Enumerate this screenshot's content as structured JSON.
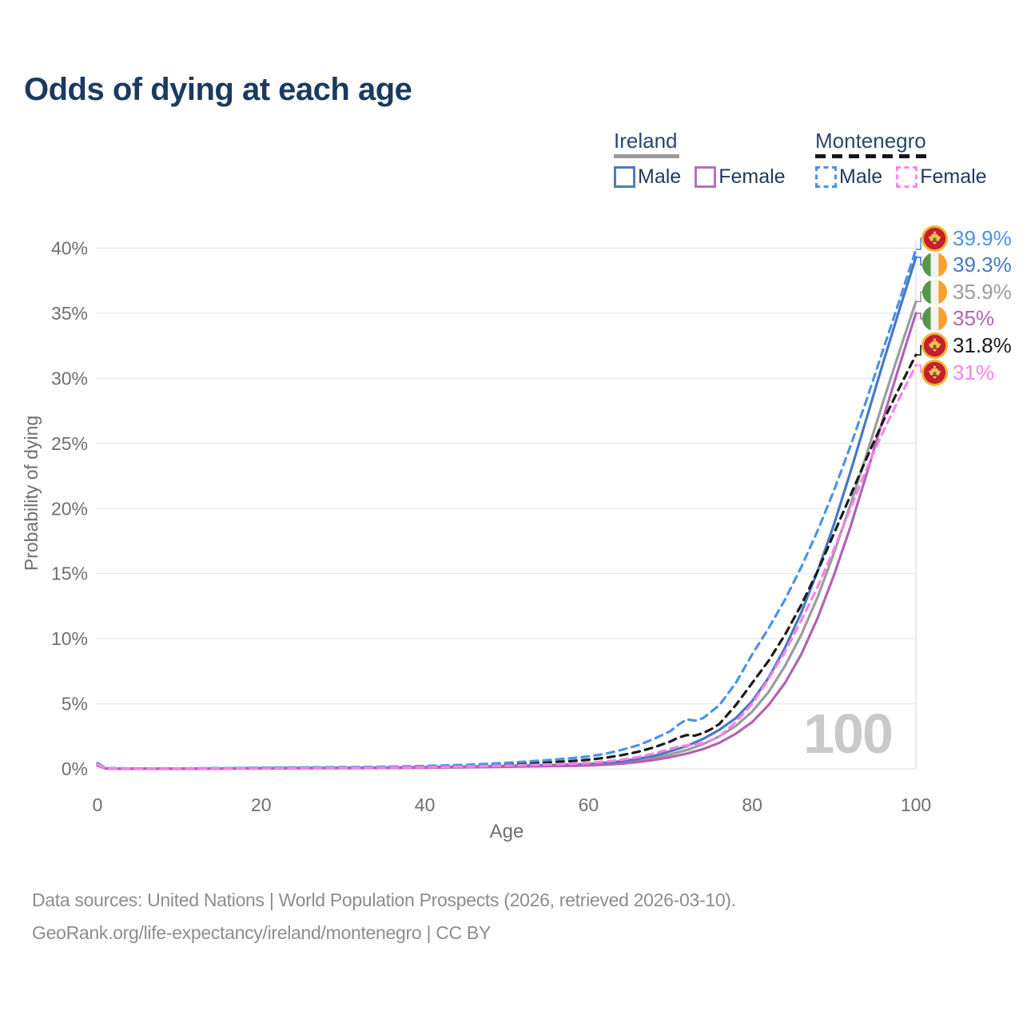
{
  "title": "Odds of dying at each age",
  "legend": {
    "groups": [
      {
        "name": "Ireland",
        "underline": "solid",
        "items": [
          {
            "label": "Male"
          },
          {
            "label": "Female"
          }
        ]
      },
      {
        "name": "Montenegro",
        "underline": "dashed",
        "items": [
          {
            "label": "Male"
          },
          {
            "label": "Female"
          }
        ]
      }
    ]
  },
  "chart_data": {
    "type": "line",
    "title": "Odds of dying at each age",
    "xlabel": "Age",
    "ylabel": "Probability of dying",
    "xlim": [
      0,
      100
    ],
    "ylim": [
      0,
      40
    ],
    "grid": "horizontal",
    "age_indicator": "100",
    "x_ticks": [
      {
        "v": 0,
        "label": "0"
      },
      {
        "v": 20,
        "label": "20"
      },
      {
        "v": 40,
        "label": "40"
      },
      {
        "v": 60,
        "label": "60"
      },
      {
        "v": 80,
        "label": "80"
      },
      {
        "v": 100,
        "label": "100"
      }
    ],
    "y_ticks": [
      {
        "v": 0,
        "label": "0%"
      },
      {
        "v": 5,
        "label": "5%"
      },
      {
        "v": 10,
        "label": "10%"
      },
      {
        "v": 15,
        "label": "15%"
      },
      {
        "v": 20,
        "label": "20%"
      },
      {
        "v": 25,
        "label": "25%"
      },
      {
        "v": 30,
        "label": "30%"
      },
      {
        "v": 35,
        "label": "35%"
      },
      {
        "v": 40,
        "label": "40%"
      }
    ],
    "series": [
      {
        "id": "mne-male",
        "name": "Montenegro Male",
        "country": "montenegro",
        "sex": "male",
        "color": "#4b93ea",
        "dash": true,
        "end_label": "39.9%",
        "points": [
          [
            0,
            0.45
          ],
          [
            1,
            0.06
          ],
          [
            2,
            0.04
          ],
          [
            5,
            0.03
          ],
          [
            10,
            0.03
          ],
          [
            15,
            0.05
          ],
          [
            20,
            0.09
          ],
          [
            25,
            0.11
          ],
          [
            30,
            0.13
          ],
          [
            35,
            0.16
          ],
          [
            40,
            0.22
          ],
          [
            45,
            0.31
          ],
          [
            50,
            0.46
          ],
          [
            55,
            0.67
          ],
          [
            58,
            0.82
          ],
          [
            60,
            0.95
          ],
          [
            62,
            1.15
          ],
          [
            64,
            1.45
          ],
          [
            66,
            1.8
          ],
          [
            68,
            2.3
          ],
          [
            70,
            2.9
          ],
          [
            71,
            3.4
          ],
          [
            72,
            3.8
          ],
          [
            73,
            3.7
          ],
          [
            74,
            3.9
          ],
          [
            75,
            4.4
          ],
          [
            76,
            4.9
          ],
          [
            78,
            6.6
          ],
          [
            80,
            8.8
          ],
          [
            82,
            10.8
          ],
          [
            84,
            13.0
          ],
          [
            86,
            15.5
          ],
          [
            88,
            18.3
          ],
          [
            90,
            21.4
          ],
          [
            92,
            24.8
          ],
          [
            94,
            28.4
          ],
          [
            96,
            32.2
          ],
          [
            98,
            36.0
          ],
          [
            100,
            39.9
          ]
        ]
      },
      {
        "id": "irl-male",
        "name": "Ireland Male",
        "country": "ireland",
        "sex": "male",
        "color": "#4679c4",
        "dash": false,
        "end_label": "39.3%",
        "points": [
          [
            0,
            0.3
          ],
          [
            1,
            0.04
          ],
          [
            2,
            0.02
          ],
          [
            5,
            0.012
          ],
          [
            10,
            0.012
          ],
          [
            15,
            0.03
          ],
          [
            20,
            0.06
          ],
          [
            25,
            0.07
          ],
          [
            30,
            0.08
          ],
          [
            35,
            0.1
          ],
          [
            40,
            0.13
          ],
          [
            45,
            0.17
          ],
          [
            50,
            0.23
          ],
          [
            55,
            0.29
          ],
          [
            58,
            0.33
          ],
          [
            60,
            0.37
          ],
          [
            62,
            0.46
          ],
          [
            64,
            0.58
          ],
          [
            66,
            0.76
          ],
          [
            68,
            1.0
          ],
          [
            70,
            1.35
          ],
          [
            72,
            1.75
          ],
          [
            74,
            2.3
          ],
          [
            76,
            3.0
          ],
          [
            78,
            3.9
          ],
          [
            80,
            5.2
          ],
          [
            82,
            7.0
          ],
          [
            84,
            9.3
          ],
          [
            86,
            12.0
          ],
          [
            88,
            15.2
          ],
          [
            90,
            18.8
          ],
          [
            92,
            22.8
          ],
          [
            94,
            27.0
          ],
          [
            96,
            31.2
          ],
          [
            98,
            35.3
          ],
          [
            100,
            39.3
          ]
        ]
      },
      {
        "id": "irl-both",
        "name": "Ireland Both sexes",
        "country": "ireland",
        "sex": "both",
        "color": "#9c9c9c",
        "dash": false,
        "end_label": "35.9%",
        "points": [
          [
            0,
            0.28
          ],
          [
            1,
            0.035
          ],
          [
            2,
            0.018
          ],
          [
            5,
            0.01
          ],
          [
            10,
            0.01
          ],
          [
            15,
            0.025
          ],
          [
            20,
            0.05
          ],
          [
            25,
            0.06
          ],
          [
            30,
            0.07
          ],
          [
            35,
            0.085
          ],
          [
            40,
            0.11
          ],
          [
            45,
            0.14
          ],
          [
            50,
            0.19
          ],
          [
            55,
            0.24
          ],
          [
            58,
            0.28
          ],
          [
            60,
            0.31
          ],
          [
            62,
            0.39
          ],
          [
            64,
            0.49
          ],
          [
            66,
            0.63
          ],
          [
            68,
            0.84
          ],
          [
            70,
            1.12
          ],
          [
            72,
            1.45
          ],
          [
            74,
            1.9
          ],
          [
            76,
            2.5
          ],
          [
            78,
            3.3
          ],
          [
            80,
            4.4
          ],
          [
            82,
            5.9
          ],
          [
            84,
            7.9
          ],
          [
            86,
            10.3
          ],
          [
            88,
            13.2
          ],
          [
            90,
            16.6
          ],
          [
            92,
            20.3
          ],
          [
            94,
            24.2
          ],
          [
            96,
            28.2
          ],
          [
            98,
            32.1
          ],
          [
            100,
            35.9
          ]
        ]
      },
      {
        "id": "irl-female",
        "name": "Ireland Female",
        "country": "ireland",
        "sex": "female",
        "color": "#b263b2",
        "dash": false,
        "end_label": "35%",
        "points": [
          [
            0,
            0.25
          ],
          [
            1,
            0.03
          ],
          [
            2,
            0.015
          ],
          [
            5,
            0.009
          ],
          [
            10,
            0.009
          ],
          [
            15,
            0.02
          ],
          [
            20,
            0.03
          ],
          [
            25,
            0.04
          ],
          [
            30,
            0.05
          ],
          [
            35,
            0.065
          ],
          [
            40,
            0.09
          ],
          [
            45,
            0.12
          ],
          [
            50,
            0.16
          ],
          [
            55,
            0.2
          ],
          [
            58,
            0.23
          ],
          [
            60,
            0.26
          ],
          [
            62,
            0.32
          ],
          [
            64,
            0.4
          ],
          [
            66,
            0.52
          ],
          [
            68,
            0.68
          ],
          [
            70,
            0.9
          ],
          [
            72,
            1.17
          ],
          [
            74,
            1.52
          ],
          [
            76,
            2.0
          ],
          [
            78,
            2.7
          ],
          [
            80,
            3.6
          ],
          [
            82,
            4.9
          ],
          [
            84,
            6.6
          ],
          [
            86,
            8.8
          ],
          [
            88,
            11.6
          ],
          [
            90,
            14.9
          ],
          [
            92,
            18.6
          ],
          [
            94,
            22.7
          ],
          [
            96,
            26.9
          ],
          [
            98,
            31.0
          ],
          [
            100,
            35.0
          ]
        ]
      },
      {
        "id": "mne-both",
        "name": "Montenegro Both sexes",
        "country": "montenegro",
        "sex": "both",
        "color": "#1b1b1b",
        "dash": true,
        "end_label": "31.8%",
        "points": [
          [
            0,
            0.4
          ],
          [
            1,
            0.05
          ],
          [
            2,
            0.035
          ],
          [
            5,
            0.02
          ],
          [
            10,
            0.02
          ],
          [
            15,
            0.04
          ],
          [
            20,
            0.07
          ],
          [
            25,
            0.085
          ],
          [
            30,
            0.1
          ],
          [
            35,
            0.13
          ],
          [
            40,
            0.17
          ],
          [
            45,
            0.24
          ],
          [
            50,
            0.35
          ],
          [
            55,
            0.5
          ],
          [
            58,
            0.6
          ],
          [
            60,
            0.7
          ],
          [
            62,
            0.85
          ],
          [
            64,
            1.05
          ],
          [
            66,
            1.3
          ],
          [
            68,
            1.65
          ],
          [
            70,
            2.1
          ],
          [
            71,
            2.4
          ],
          [
            72,
            2.6
          ],
          [
            73,
            2.55
          ],
          [
            74,
            2.75
          ],
          [
            75,
            3.05
          ],
          [
            76,
            3.45
          ],
          [
            78,
            4.9
          ],
          [
            80,
            6.6
          ],
          [
            82,
            8.3
          ],
          [
            84,
            10.3
          ],
          [
            86,
            12.6
          ],
          [
            88,
            15.2
          ],
          [
            90,
            18.1
          ],
          [
            92,
            21.0
          ],
          [
            94,
            23.9
          ],
          [
            96,
            26.7
          ],
          [
            98,
            29.3
          ],
          [
            100,
            31.8
          ]
        ]
      },
      {
        "id": "mne-female",
        "name": "Montenegro Female",
        "country": "montenegro",
        "sex": "female",
        "color": "#ff80e8",
        "dash": true,
        "end_label": "31%",
        "points": [
          [
            0,
            0.35
          ],
          [
            1,
            0.045
          ],
          [
            2,
            0.03
          ],
          [
            5,
            0.018
          ],
          [
            10,
            0.018
          ],
          [
            15,
            0.03
          ],
          [
            20,
            0.045
          ],
          [
            25,
            0.055
          ],
          [
            30,
            0.07
          ],
          [
            35,
            0.09
          ],
          [
            40,
            0.12
          ],
          [
            45,
            0.17
          ],
          [
            50,
            0.25
          ],
          [
            55,
            0.34
          ],
          [
            58,
            0.4
          ],
          [
            60,
            0.46
          ],
          [
            62,
            0.56
          ],
          [
            64,
            0.7
          ],
          [
            66,
            0.9
          ],
          [
            68,
            1.18
          ],
          [
            70,
            1.55
          ],
          [
            71,
            1.7
          ],
          [
            72,
            1.8
          ],
          [
            73,
            1.85
          ],
          [
            74,
            2.0
          ],
          [
            75,
            2.2
          ],
          [
            76,
            2.5
          ],
          [
            78,
            3.6
          ],
          [
            80,
            5.0
          ],
          [
            82,
            6.9
          ],
          [
            84,
            9.0
          ],
          [
            86,
            11.4
          ],
          [
            88,
            14.0
          ],
          [
            90,
            16.9
          ],
          [
            92,
            20.0
          ],
          [
            94,
            23.1
          ],
          [
            96,
            25.9
          ],
          [
            98,
            28.5
          ],
          [
            100,
            31.0
          ]
        ]
      }
    ]
  },
  "footer": {
    "line1": "Data sources: United Nations | World Population Prospects (2026, retrieved 2026-03-10).",
    "line2": "GeoRank.org/life-expectancy/ireland/montenegro | CC BY"
  }
}
